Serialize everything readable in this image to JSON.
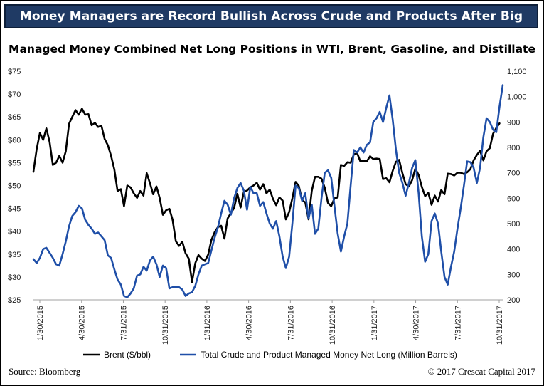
{
  "header": {
    "banner_title": "Money Managers are Record Bullish Across Crude and Products After Big Rally"
  },
  "footer": {
    "source": "Source: Bloomberg",
    "copyright": "© 2017 Crescat Capital 2017"
  },
  "colors": {
    "banner_bg": "#1f3a64",
    "brent": "#000000",
    "net_long": "#1f4fa8"
  },
  "chart_data": {
    "type": "line",
    "title": "Managed Money Combined Net Long Positions in WTI, Brent, Gasoline, and Distillate",
    "x_tick_labels": [
      "1/30/2015",
      "4/30/2015",
      "7/31/2015",
      "10/31/2015",
      "1/31/2016",
      "4/30/2016",
      "7/31/2016",
      "10/31/2016",
      "1/31/2017",
      "4/30/2017",
      "7/31/2017",
      "10/31/2017"
    ],
    "y_left": {
      "ticks": [
        "$25",
        "$30",
        "$35",
        "$40",
        "$45",
        "$50",
        "$55",
        "$60",
        "$65",
        "$70",
        "$75"
      ],
      "ylim": [
        25,
        75
      ]
    },
    "y_right": {
      "ticks": [
        "200",
        "300",
        "400",
        "500",
        "600",
        "700",
        "800",
        "900",
        "1,000",
        "1,100"
      ],
      "ylim": [
        200,
        1100
      ]
    },
    "legend_position": "bottom",
    "grid": false,
    "series": [
      {
        "name": "Brent ($/bbl)",
        "axis": "left",
        "color": "#000000",
        "points": [
          [
            0,
            53
          ],
          [
            1,
            58
          ],
          [
            2,
            61.5
          ],
          [
            3,
            60
          ],
          [
            4,
            62.5
          ],
          [
            5,
            59.5
          ],
          [
            6,
            54.5
          ],
          [
            7,
            55
          ],
          [
            8,
            56.5
          ],
          [
            9,
            55
          ],
          [
            10,
            57.5
          ],
          [
            11,
            63.5
          ],
          [
            12,
            65
          ],
          [
            13,
            66.5
          ],
          [
            14,
            65.5
          ],
          [
            15,
            66.8
          ],
          [
            16,
            65.5
          ],
          [
            17,
            65.6
          ],
          [
            18,
            63.2
          ],
          [
            19,
            63.7
          ],
          [
            20,
            62.8
          ],
          [
            21,
            63.1
          ],
          [
            22,
            60.2
          ],
          [
            23,
            58.8
          ],
          [
            24,
            56.5
          ],
          [
            25,
            53.5
          ],
          [
            26,
            48.8
          ],
          [
            27,
            49.2
          ],
          [
            28,
            45.5
          ],
          [
            29,
            50
          ],
          [
            30,
            49.6
          ],
          [
            31,
            48.3
          ],
          [
            32,
            47.3
          ],
          [
            33,
            48.8
          ],
          [
            34,
            47.8
          ],
          [
            35,
            52.7
          ],
          [
            36,
            50.5
          ],
          [
            37,
            48.1
          ],
          [
            38,
            49.8
          ],
          [
            39,
            47.3
          ],
          [
            40,
            43.6
          ],
          [
            41,
            44.6
          ],
          [
            42,
            44.9
          ],
          [
            43,
            42.5
          ],
          [
            44,
            37.8
          ],
          [
            45,
            36.8
          ],
          [
            46,
            37.7
          ],
          [
            47,
            35.2
          ],
          [
            48,
            34
          ],
          [
            49,
            28.9
          ],
          [
            50,
            33
          ],
          [
            51,
            34.8
          ],
          [
            52,
            34
          ],
          [
            53,
            33.5
          ],
          [
            54,
            34.9
          ],
          [
            55,
            38.1
          ],
          [
            56,
            39.8
          ],
          [
            57,
            40.9
          ],
          [
            58,
            41.2
          ],
          [
            59,
            38.4
          ],
          [
            60,
            42.8
          ],
          [
            61,
            44
          ],
          [
            62,
            45.1
          ],
          [
            63,
            48.2
          ],
          [
            64,
            45.2
          ],
          [
            65,
            48.6
          ],
          [
            66,
            48.9
          ],
          [
            67,
            49.6
          ],
          [
            68,
            50
          ],
          [
            69,
            50.6
          ],
          [
            70,
            49.1
          ],
          [
            71,
            50.3
          ],
          [
            72,
            48.3
          ],
          [
            73,
            49.1
          ],
          [
            74,
            47.1
          ],
          [
            75,
            45.7
          ],
          [
            76,
            47.4
          ],
          [
            77,
            46.7
          ],
          [
            78,
            42.6
          ],
          [
            79,
            44.2
          ],
          [
            80,
            47.2
          ],
          [
            81,
            50.8
          ],
          [
            82,
            49.9
          ],
          [
            83,
            46.8
          ],
          [
            84,
            46.3
          ],
          [
            85,
            42.6
          ],
          [
            86,
            48.8
          ],
          [
            87,
            51.9
          ],
          [
            88,
            51.9
          ],
          [
            89,
            51.5
          ],
          [
            90,
            49.5
          ],
          [
            91,
            46.2
          ],
          [
            92,
            45.5
          ],
          [
            93,
            47.2
          ],
          [
            94,
            47.4
          ],
          [
            95,
            54.5
          ],
          [
            96,
            54.3
          ],
          [
            97,
            55.1
          ],
          [
            98,
            55
          ],
          [
            99,
            56.8
          ],
          [
            100,
            57.1
          ],
          [
            101,
            55.3
          ],
          [
            102,
            55.4
          ],
          [
            103,
            55.3
          ],
          [
            104,
            56.4
          ],
          [
            105,
            55.8
          ],
          [
            106,
            55.9
          ],
          [
            107,
            55.8
          ],
          [
            108,
            51.4
          ],
          [
            109,
            51.6
          ],
          [
            110,
            50.7
          ],
          [
            111,
            53.2
          ],
          [
            112,
            55.2
          ],
          [
            113,
            55.6
          ],
          [
            114,
            52.7
          ],
          [
            115,
            50.3
          ],
          [
            116,
            49.8
          ],
          [
            117,
            51.2
          ],
          [
            118,
            53.7
          ],
          [
            119,
            52.3
          ],
          [
            120,
            49.7
          ],
          [
            121,
            47.7
          ],
          [
            122,
            48.4
          ],
          [
            123,
            45.8
          ],
          [
            124,
            47.8
          ],
          [
            125,
            46.5
          ],
          [
            126,
            49
          ],
          [
            127,
            48.1
          ],
          [
            128,
            52.6
          ],
          [
            129,
            52.5
          ],
          [
            130,
            52.2
          ],
          [
            131,
            52.8
          ],
          [
            132,
            52.8
          ],
          [
            133,
            52.5
          ],
          [
            134,
            52.9
          ],
          [
            135,
            53.6
          ],
          [
            136,
            55.5
          ],
          [
            137,
            56.7
          ],
          [
            138,
            57.6
          ],
          [
            139,
            55.5
          ],
          [
            140,
            57.5
          ],
          [
            141,
            58.2
          ],
          [
            142,
            61.3
          ],
          [
            143,
            62.6
          ],
          [
            144,
            63.6
          ]
        ]
      },
      {
        "name": "Total Crude and Product Managed Money Net Long (Million Barrels)",
        "axis": "right",
        "color": "#1f4fa8",
        "points": [
          [
            0,
            360
          ],
          [
            1,
            345
          ],
          [
            2,
            365
          ],
          [
            3,
            400
          ],
          [
            4,
            405
          ],
          [
            5,
            385
          ],
          [
            6,
            365
          ],
          [
            7,
            340
          ],
          [
            8,
            335
          ],
          [
            9,
            380
          ],
          [
            10,
            430
          ],
          [
            11,
            490
          ],
          [
            12,
            530
          ],
          [
            13,
            545
          ],
          [
            14,
            570
          ],
          [
            15,
            560
          ],
          [
            16,
            515
          ],
          [
            17,
            495
          ],
          [
            18,
            480
          ],
          [
            19,
            460
          ],
          [
            20,
            465
          ],
          [
            21,
            450
          ],
          [
            22,
            435
          ],
          [
            23,
            375
          ],
          [
            24,
            365
          ],
          [
            25,
            320
          ],
          [
            26,
            280
          ],
          [
            27,
            260
          ],
          [
            28,
            215
          ],
          [
            29,
            210
          ],
          [
            30,
            225
          ],
          [
            31,
            245
          ],
          [
            32,
            295
          ],
          [
            33,
            300
          ],
          [
            34,
            330
          ],
          [
            35,
            315
          ],
          [
            36,
            355
          ],
          [
            37,
            370
          ],
          [
            38,
            340
          ],
          [
            39,
            290
          ],
          [
            40,
            335
          ],
          [
            41,
            325
          ],
          [
            42,
            245
          ],
          [
            43,
            250
          ],
          [
            44,
            250
          ],
          [
            45,
            250
          ],
          [
            46,
            240
          ],
          [
            47,
            215
          ],
          [
            48,
            225
          ],
          [
            49,
            230
          ],
          [
            50,
            255
          ],
          [
            51,
            300
          ],
          [
            52,
            335
          ],
          [
            53,
            340
          ],
          [
            54,
            345
          ],
          [
            55,
            395
          ],
          [
            56,
            445
          ],
          [
            57,
            485
          ],
          [
            58,
            540
          ],
          [
            59,
            590
          ],
          [
            60,
            575
          ],
          [
            61,
            535
          ],
          [
            62,
            600
          ],
          [
            63,
            640
          ],
          [
            64,
            660
          ],
          [
            65,
            630
          ],
          [
            66,
            555
          ],
          [
            67,
            645
          ],
          [
            68,
            620
          ],
          [
            69,
            620
          ],
          [
            70,
            570
          ],
          [
            71,
            585
          ],
          [
            72,
            540
          ],
          [
            73,
            500
          ],
          [
            74,
            480
          ],
          [
            75,
            510
          ],
          [
            76,
            450
          ],
          [
            77,
            370
          ],
          [
            78,
            325
          ],
          [
            79,
            370
          ],
          [
            80,
            500
          ],
          [
            81,
            650
          ],
          [
            82,
            640
          ],
          [
            83,
            590
          ],
          [
            84,
            620
          ],
          [
            85,
            520
          ],
          [
            86,
            575
          ],
          [
            87,
            460
          ],
          [
            88,
            480
          ],
          [
            89,
            600
          ],
          [
            90,
            700
          ],
          [
            91,
            710
          ],
          [
            92,
            680
          ],
          [
            93,
            570
          ],
          [
            94,
            460
          ],
          [
            95,
            390
          ],
          [
            96,
            450
          ],
          [
            97,
            500
          ],
          [
            98,
            650
          ],
          [
            99,
            790
          ],
          [
            100,
            780
          ],
          [
            101,
            800
          ],
          [
            102,
            780
          ],
          [
            103,
            810
          ],
          [
            104,
            820
          ],
          [
            105,
            900
          ],
          [
            106,
            915
          ],
          [
            107,
            940
          ],
          [
            108,
            900
          ],
          [
            109,
            955
          ],
          [
            110,
            1005
          ],
          [
            111,
            910
          ],
          [
            112,
            790
          ],
          [
            113,
            700
          ],
          [
            114,
            660
          ],
          [
            115,
            610
          ],
          [
            116,
            660
          ],
          [
            117,
            720
          ],
          [
            118,
            750
          ],
          [
            119,
            620
          ],
          [
            120,
            450
          ],
          [
            121,
            350
          ],
          [
            122,
            380
          ],
          [
            123,
            510
          ],
          [
            124,
            540
          ],
          [
            125,
            500
          ],
          [
            126,
            390
          ],
          [
            127,
            290
          ],
          [
            128,
            260
          ],
          [
            129,
            330
          ],
          [
            130,
            390
          ],
          [
            131,
            480
          ],
          [
            132,
            560
          ],
          [
            133,
            650
          ],
          [
            134,
            745
          ],
          [
            135,
            742
          ],
          [
            136,
            720
          ],
          [
            137,
            660
          ],
          [
            138,
            720
          ],
          [
            139,
            840
          ],
          [
            140,
            915
          ],
          [
            141,
            900
          ],
          [
            142,
            870
          ],
          [
            143,
            860
          ],
          [
            144,
            960
          ],
          [
            145,
            1045
          ]
        ]
      }
    ]
  }
}
